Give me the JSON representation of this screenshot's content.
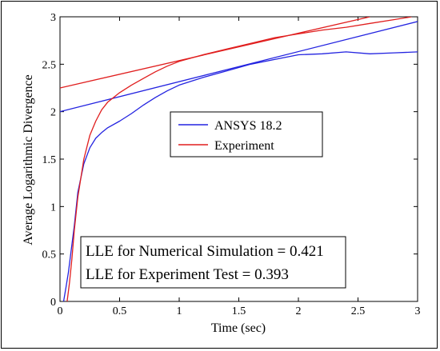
{
  "chart_data": {
    "type": "line",
    "xlabel": "Time (sec)",
    "ylabel": "Average Logarithmic Divergence",
    "xlim": [
      0,
      3
    ],
    "ylim": [
      0,
      3
    ],
    "xticks": [
      0,
      0.5,
      1,
      1.5,
      2,
      2.5,
      3
    ],
    "xtick_labels": [
      "0",
      "0.5",
      "1",
      "1.5",
      "2",
      "2.5",
      "3"
    ],
    "yticks": [
      0,
      0.5,
      1,
      1.5,
      2,
      2.5,
      3
    ],
    "ytick_labels": [
      "0",
      "0.5",
      "1",
      "1.5",
      "2",
      "2.5",
      "3"
    ],
    "grid": false,
    "legend_position": "center-right",
    "series": [
      {
        "name": "ANSYS 18.2",
        "color": "#2323e0",
        "x": [
          0.03,
          0.05,
          0.07,
          0.09,
          0.12,
          0.15,
          0.2,
          0.25,
          0.3,
          0.35,
          0.4,
          0.5,
          0.6,
          0.7,
          0.8,
          0.9,
          1.0,
          1.2,
          1.4,
          1.6,
          1.8,
          2.0,
          2.2,
          2.4,
          2.6,
          2.8,
          3.0
        ],
        "y": [
          0.0,
          0.15,
          0.3,
          0.5,
          0.8,
          1.15,
          1.45,
          1.62,
          1.72,
          1.78,
          1.83,
          1.9,
          1.98,
          2.07,
          2.15,
          2.22,
          2.28,
          2.36,
          2.43,
          2.5,
          2.55,
          2.6,
          2.61,
          2.63,
          2.61,
          2.62,
          2.63
        ]
      },
      {
        "name": "Experiment",
        "color": "#e01e1e",
        "x": [
          0.06,
          0.08,
          0.1,
          0.12,
          0.15,
          0.2,
          0.25,
          0.3,
          0.35,
          0.4,
          0.5,
          0.6,
          0.7,
          0.8,
          0.9,
          1.0,
          1.2,
          1.4,
          1.6,
          1.8,
          2.0,
          2.2,
          2.4,
          2.6,
          2.8,
          2.95
        ],
        "y": [
          0.0,
          0.2,
          0.45,
          0.75,
          1.1,
          1.5,
          1.75,
          1.9,
          2.02,
          2.1,
          2.2,
          2.28,
          2.35,
          2.42,
          2.48,
          2.53,
          2.6,
          2.66,
          2.72,
          2.78,
          2.82,
          2.86,
          2.89,
          2.93,
          2.97,
          3.0
        ]
      }
    ],
    "fit_lines": [
      {
        "series": "ANSYS 18.2",
        "color": "#2323e0",
        "x": [
          0,
          3
        ],
        "y": [
          2.0,
          2.95
        ]
      },
      {
        "series": "Experiment",
        "color": "#e01e1e",
        "x": [
          0,
          2.6
        ],
        "y": [
          2.25,
          3.0
        ]
      }
    ],
    "annotations": [
      "LLE for Numerical Simulation = 0.421",
      "LLE for Experiment Test = 0.393"
    ]
  }
}
